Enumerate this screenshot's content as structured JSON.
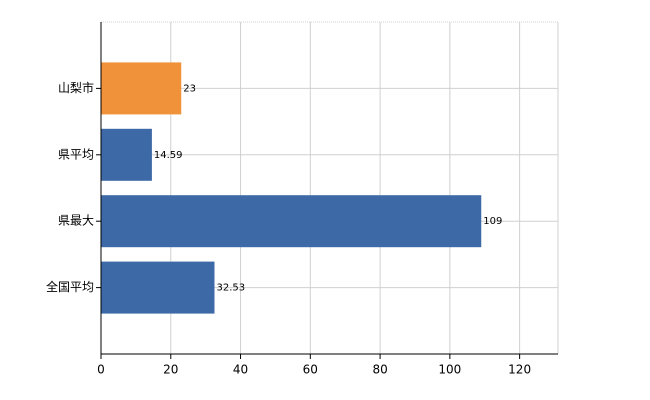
{
  "chart_data": {
    "type": "hbar",
    "categories": [
      "山梨市",
      "県平均",
      "県最大",
      "全国平均"
    ],
    "values": [
      23,
      14.59,
      109,
      32.53
    ],
    "colors": [
      "#f0923a",
      "#3d6aa6",
      "#3d6aa6",
      "#3d6aa6"
    ],
    "xlim": [
      0,
      131
    ],
    "xticks": [
      0,
      20,
      40,
      60,
      80,
      100,
      120
    ],
    "grid": true
  }
}
